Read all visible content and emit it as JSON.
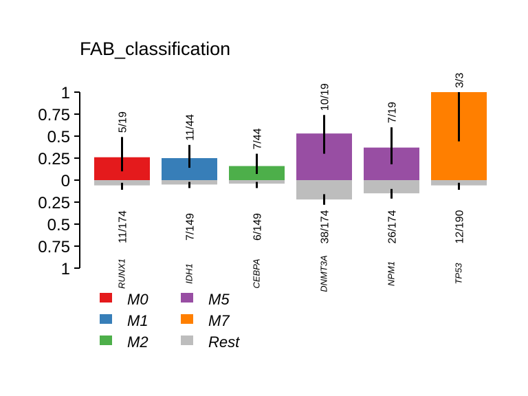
{
  "chart_data": {
    "type": "bar",
    "title": "FAB_classification",
    "xlabel": "",
    "ylabel": "",
    "ylim": [
      -1,
      1
    ],
    "y_ticks": [
      {
        "value": 1,
        "label": "1"
      },
      {
        "value": 0.75,
        "label": "0.75"
      },
      {
        "value": 0.5,
        "label": "0.5"
      },
      {
        "value": 0.25,
        "label": "0.25"
      },
      {
        "value": 0,
        "label": "0"
      },
      {
        "value": -0.25,
        "label": "0.25"
      },
      {
        "value": -0.5,
        "label": "0.5"
      },
      {
        "value": -0.75,
        "label": "0.75"
      },
      {
        "value": -1,
        "label": "1"
      }
    ],
    "categories": [
      "RUNX1",
      "IDH1",
      "CEBPA",
      "DNMT3A",
      "NPM1",
      "TP53"
    ],
    "bars": [
      {
        "gene": "RUNX1",
        "group": "M0",
        "top_value": 0.26,
        "top_label": "5/19",
        "top_ci": [
          0.1,
          0.49
        ],
        "bottom_value": 0.06,
        "bottom_label": "11/174",
        "bottom_ci": [
          0.03,
          0.11
        ]
      },
      {
        "gene": "IDH1",
        "group": "M1",
        "top_value": 0.25,
        "top_label": "11/44",
        "top_ci": [
          0.14,
          0.4
        ],
        "bottom_value": 0.05,
        "bottom_label": "7/149",
        "bottom_ci": [
          0.02,
          0.09
        ]
      },
      {
        "gene": "CEBPA",
        "group": "M2",
        "top_value": 0.16,
        "top_label": "7/44",
        "top_ci": [
          0.07,
          0.3
        ],
        "bottom_value": 0.04,
        "bottom_label": "6/149",
        "bottom_ci": [
          0.02,
          0.09
        ]
      },
      {
        "gene": "DNMT3A",
        "group": "M5",
        "top_value": 0.53,
        "top_label": "10/19",
        "top_ci": [
          0.3,
          0.74
        ],
        "bottom_value": 0.22,
        "bottom_label": "38/174",
        "bottom_ci": [
          0.16,
          0.28
        ]
      },
      {
        "gene": "NPM1",
        "group": "M5",
        "top_value": 0.37,
        "top_label": "7/19",
        "top_ci": [
          0.18,
          0.6
        ],
        "bottom_value": 0.15,
        "bottom_label": "26/174",
        "bottom_ci": [
          0.1,
          0.21
        ]
      },
      {
        "gene": "TP53",
        "group": "M7",
        "top_value": 1.0,
        "top_label": "3/3",
        "top_ci": [
          0.44,
          1.0
        ],
        "bottom_value": 0.06,
        "bottom_label": "12/190",
        "bottom_ci": [
          0.03,
          0.11
        ]
      }
    ],
    "colors": {
      "M0": "#E41A1C",
      "M1": "#377EB8",
      "M2": "#4DAF4A",
      "M5": "#984EA3",
      "M7": "#FF7F00",
      "Rest": "#BDBDBD"
    },
    "legend": [
      "M0",
      "M1",
      "M2",
      "M5",
      "M7",
      "Rest"
    ],
    "legend_position": "bottom-left",
    "grid": false
  }
}
